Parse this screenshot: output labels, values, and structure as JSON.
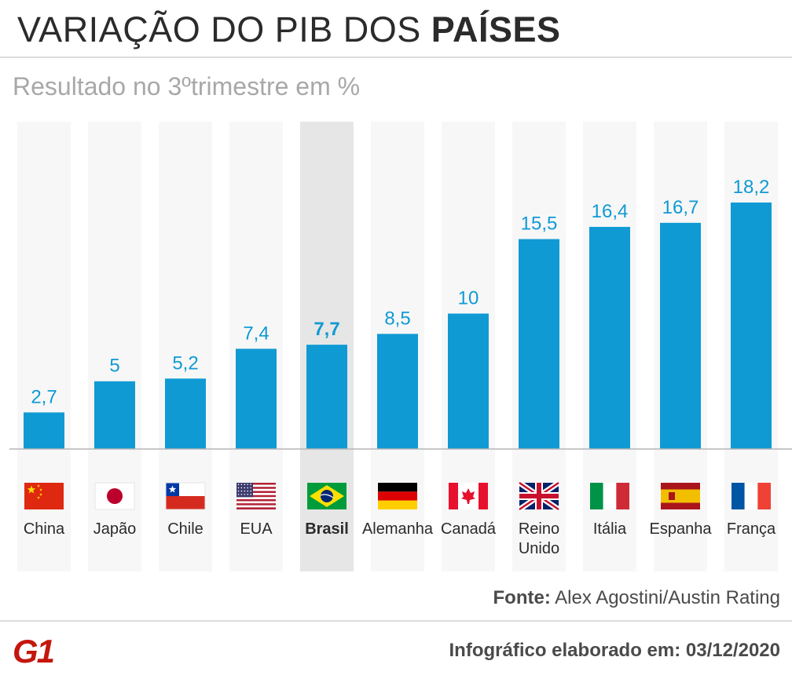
{
  "header": {
    "title_regular": "VARIAÇÃO DO PIB DOS",
    "title_bold": "PAÍSES",
    "subtitle": "Resultado no 3ºtrimestre em %"
  },
  "chart_data": {
    "type": "bar",
    "title": "VARIAÇÃO DO PIB DOS PAÍSES",
    "subtitle": "Resultado no 3ºtrimestre em %",
    "categories": [
      "China",
      "Japão",
      "Chile",
      "EUA",
      "Brasil",
      "Alemanha",
      "Canadá",
      "Reino Unido",
      "Itália",
      "Espanha",
      "França"
    ],
    "values": [
      2.7,
      5,
      5.2,
      7.4,
      7.7,
      8.5,
      10,
      15.5,
      16.4,
      16.7,
      18.2
    ],
    "value_labels": [
      "2,7",
      "5",
      "5,2",
      "7,4",
      "7,7",
      "8,5",
      "10",
      "15,5",
      "16,4",
      "16,7",
      "18,2"
    ],
    "highlight": "Brasil",
    "ylim": [
      0,
      18.2
    ],
    "grid": false,
    "legend": "none",
    "bar_color": "#0f9ad4",
    "column_bg": "#f7f7f7",
    "highlight_bg": "#e6e6e6",
    "flag_icons": [
      "china-flag-icon",
      "japan-flag-icon",
      "chile-flag-icon",
      "usa-flag-icon",
      "brazil-flag-icon",
      "germany-flag-icon",
      "canada-flag-icon",
      "uk-flag-icon",
      "italy-flag-icon",
      "spain-flag-icon",
      "france-flag-icon"
    ]
  },
  "footer": {
    "source_label": "Fonte:",
    "source_text": "Alex Agostini/Austin Rating",
    "note": "Infográfico elaborado em: 03/12/2020",
    "logo_text": "G1",
    "logo_color": "#c4170c"
  }
}
